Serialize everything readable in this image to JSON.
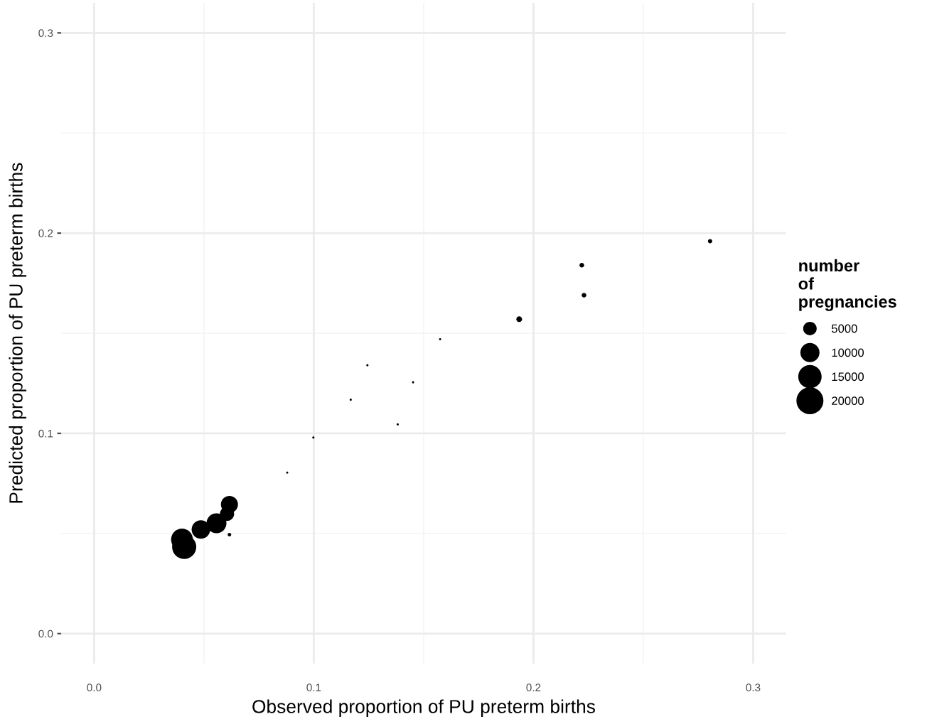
{
  "chart_data": {
    "type": "bubble",
    "xlabel": "Observed proportion of PU preterm births",
    "ylabel": "Predicted proportion of PU preterm births",
    "legend_title": "number\nof\npregnancies",
    "x": [
      0.2804,
      0.222,
      0.223,
      0.1935,
      0.1575,
      0.1244,
      0.1452,
      0.1168,
      0.1382,
      0.0998,
      0.0879,
      0.0616,
      0.041,
      0.04,
      0.0486,
      0.0557,
      0.0605,
      0.0616
    ],
    "series": [
      {
        "color": "#000000",
        "values": [
          0.196,
          0.184,
          0.169,
          0.157,
          0.147,
          0.134,
          0.1255,
          0.1168,
          0.1045,
          0.0979,
          0.0804,
          0.0494,
          0.0433,
          0.047,
          0.052,
          0.0551,
          0.0598,
          0.0645
        ],
        "sizes": [
          500,
          600,
          600,
          900,
          130,
          130,
          130,
          130,
          130,
          130,
          130,
          350,
          16000,
          13000,
          9400,
          10900,
          5500,
          8000
        ]
      }
    ],
    "size_legend": [
      5000,
      10000,
      15000,
      20000
    ],
    "xlim": [
      -0.015,
      0.315
    ],
    "ylim": [
      -0.015,
      0.315
    ],
    "xticks": [
      {
        "value": 0,
        "label": "0.0"
      },
      0.1,
      0.2,
      0.3
    ],
    "yticks": [
      {
        "value": 0,
        "label": "0.0"
      },
      0.1,
      0.2,
      0.3
    ],
    "grid": true,
    "marker": "circle"
  }
}
